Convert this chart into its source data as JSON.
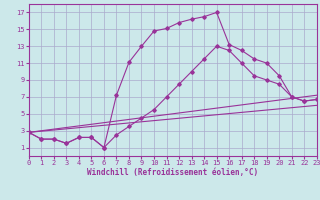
{
  "xlabel": "Windchill (Refroidissement éolien,°C)",
  "xlim": [
    0,
    23
  ],
  "ylim": [
    0,
    18
  ],
  "xticks": [
    0,
    1,
    2,
    3,
    4,
    5,
    6,
    7,
    8,
    9,
    10,
    11,
    12,
    13,
    14,
    15,
    16,
    17,
    18,
    19,
    20,
    21,
    22,
    23
  ],
  "yticks": [
    1,
    3,
    5,
    7,
    9,
    11,
    13,
    15,
    17
  ],
  "background_color": "#cce8ea",
  "grid_color": "#aaaacc",
  "line_color": "#993399",
  "curve_upper_x": [
    0,
    1,
    2,
    3,
    4,
    5,
    6,
    7,
    8,
    9,
    10,
    11,
    12,
    13,
    14,
    15,
    16,
    17,
    18,
    19,
    20,
    21,
    22,
    23
  ],
  "curve_upper_y": [
    2.8,
    2.0,
    2.0,
    1.5,
    2.2,
    2.2,
    1.0,
    7.2,
    11.1,
    13.0,
    14.8,
    15.1,
    15.8,
    16.2,
    16.5,
    17.0,
    13.2,
    12.5,
    11.5,
    11.0,
    9.5,
    7.0,
    6.5,
    6.7
  ],
  "curve_lower_x": [
    0,
    1,
    2,
    3,
    4,
    5,
    6,
    7,
    8,
    9,
    10,
    11,
    12,
    13,
    14,
    15,
    16,
    17,
    18,
    19,
    20,
    21,
    22,
    23
  ],
  "curve_lower_y": [
    2.8,
    2.0,
    2.0,
    1.5,
    2.2,
    2.2,
    1.0,
    2.5,
    3.5,
    4.5,
    5.5,
    7.0,
    8.5,
    10.0,
    11.5,
    13.0,
    12.5,
    11.0,
    9.5,
    9.0,
    8.5,
    7.0,
    6.5,
    6.7
  ],
  "line1_x": [
    0,
    23
  ],
  "line1_y": [
    2.8,
    7.2
  ],
  "line2_x": [
    0,
    23
  ],
  "line2_y": [
    2.8,
    6.0
  ]
}
